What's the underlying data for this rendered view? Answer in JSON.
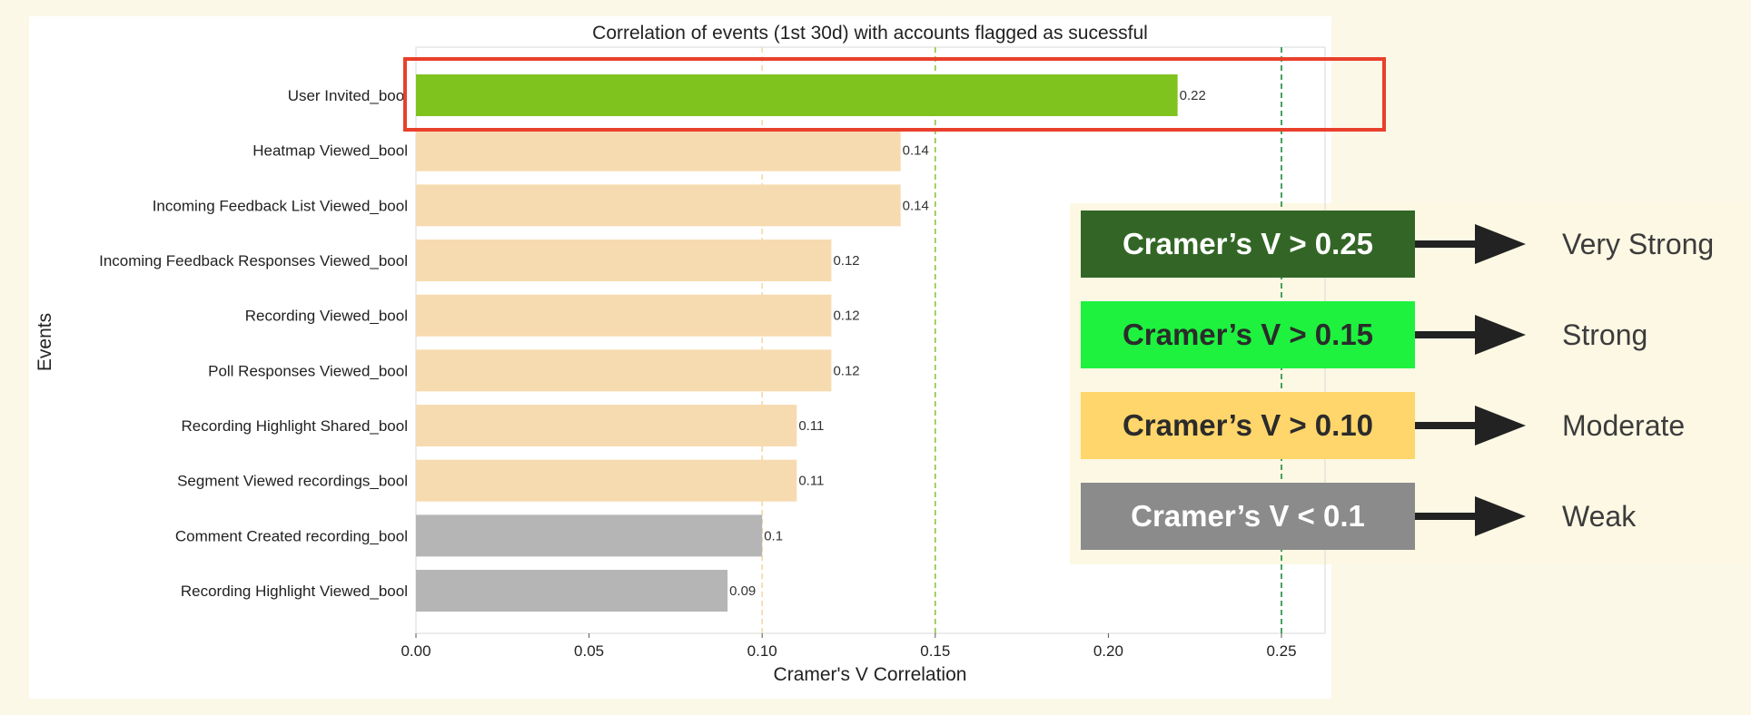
{
  "chart_data": {
    "type": "bar",
    "orientation": "horizontal",
    "title": "Correlation of events (1st 30d) with accounts flagged as sucessful",
    "xlabel": "Cramer's V Correlation",
    "ylabel": "Events",
    "xlim": [
      0,
      0.26
    ],
    "xticks": [
      "0.00",
      "0.05",
      "0.10",
      "0.15",
      "0.20",
      "0.25"
    ],
    "xtick_values": [
      0,
      0.05,
      0.1,
      0.15,
      0.2,
      0.25
    ],
    "grid": false,
    "categories": [
      "User Invited_bool",
      "Heatmap Viewed_bool",
      "Incoming Feedback List Viewed_bool",
      "Incoming Feedback Responses Viewed_bool",
      "Recording Viewed_bool",
      "Poll Responses Viewed_bool",
      "Recording Highlight Shared_bool",
      "Segment Viewed recordings_bool",
      "Comment Created recording_bool",
      "Recording Highlight Viewed_bool"
    ],
    "values": [
      0.22,
      0.14,
      0.14,
      0.12,
      0.12,
      0.12,
      0.11,
      0.11,
      0.1,
      0.09
    ],
    "value_labels": [
      "0.22",
      "0.14",
      "0.14",
      "0.12",
      "0.12",
      "0.12",
      "0.11",
      "0.11",
      "0.1",
      "0.09"
    ],
    "bar_colors": [
      "#7fc31e",
      "#f7dbb0",
      "#f7dbb0",
      "#f7dbb0",
      "#f7dbb0",
      "#f7dbb0",
      "#f7dbb0",
      "#f7dbb0",
      "#b5b5b5",
      "#b5b5b5"
    ],
    "reference_lines": [
      {
        "x": 0.1,
        "color": "#f3d9a8",
        "style": "dashed"
      },
      {
        "x": 0.15,
        "color": "#8cc63f",
        "style": "dashed"
      },
      {
        "x": 0.25,
        "color": "#1b8a3a",
        "style": "dashed"
      }
    ],
    "highlight_category": "User Invited_bool",
    "highlight_color": "#e8402b"
  },
  "legend": {
    "items": [
      {
        "label": "Cramer’s V > 0.25",
        "description": "Very Strong",
        "color": "#336626",
        "text_color": "#ffffff"
      },
      {
        "label": "Cramer’s V > 0.15",
        "description": "Strong",
        "color": "#1ef23f",
        "text_color": "#2b2b2b"
      },
      {
        "label": "Cramer’s V > 0.10",
        "description": "Moderate",
        "color": "#ffd66b",
        "text_color": "#2b2b2b"
      },
      {
        "label": "Cramer’s V < 0.1",
        "description": "Weak",
        "color": "#8b8b8b",
        "text_color": "#ffffff"
      }
    ]
  }
}
